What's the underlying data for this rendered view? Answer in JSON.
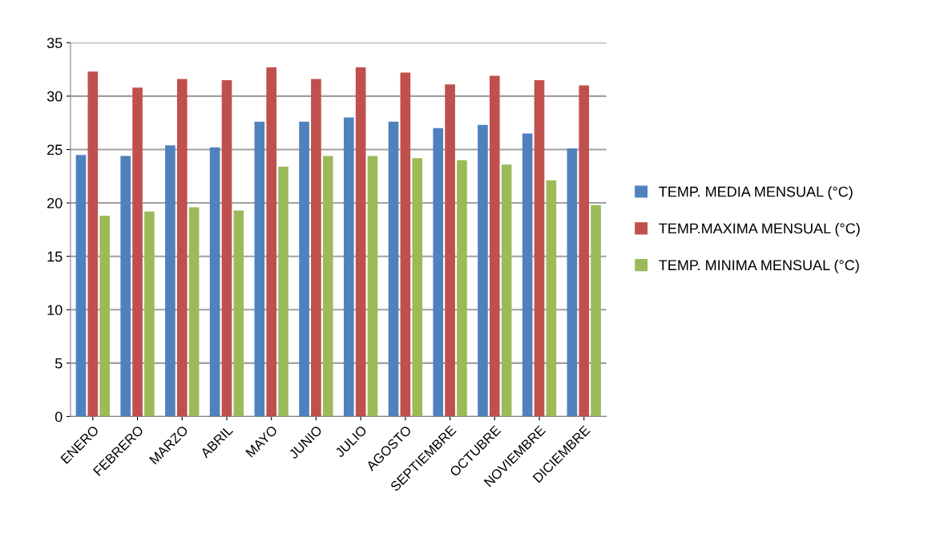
{
  "chart_data": {
    "type": "bar",
    "categories": [
      "ENERO",
      "FEBRERO",
      "MARZO",
      "ABRIL",
      "MAYO",
      "JUNIO",
      "JULIO",
      "AGOSTO",
      "SEPTIEMBRE",
      "OCTUBRE",
      "NOVIEMBRE",
      "DICIEMBRE"
    ],
    "series": [
      {
        "name": "TEMP. MEDIA MENSUAL (°C)",
        "color": "#4f81bd",
        "values": [
          24.5,
          24.4,
          25.4,
          25.2,
          27.6,
          27.6,
          28.0,
          27.6,
          27.0,
          27.3,
          26.5,
          25.1
        ]
      },
      {
        "name": "TEMP.MAXIMA MENSUAL (°C)",
        "color": "#c0504d",
        "values": [
          32.3,
          30.8,
          31.6,
          31.5,
          32.7,
          31.6,
          32.7,
          32.2,
          31.1,
          31.9,
          31.5,
          31.0
        ]
      },
      {
        "name": "TEMP. MINIMA MENSUAL (°C)",
        "color": "#9bbb59",
        "values": [
          18.8,
          19.2,
          19.6,
          19.3,
          23.4,
          24.4,
          24.4,
          24.2,
          24.0,
          23.6,
          22.1,
          19.8
        ]
      }
    ],
    "ylim": [
      0,
      35
    ],
    "yticks": [
      0,
      5,
      10,
      15,
      20,
      25,
      30,
      35
    ],
    "grid": "y",
    "legend": "right"
  }
}
